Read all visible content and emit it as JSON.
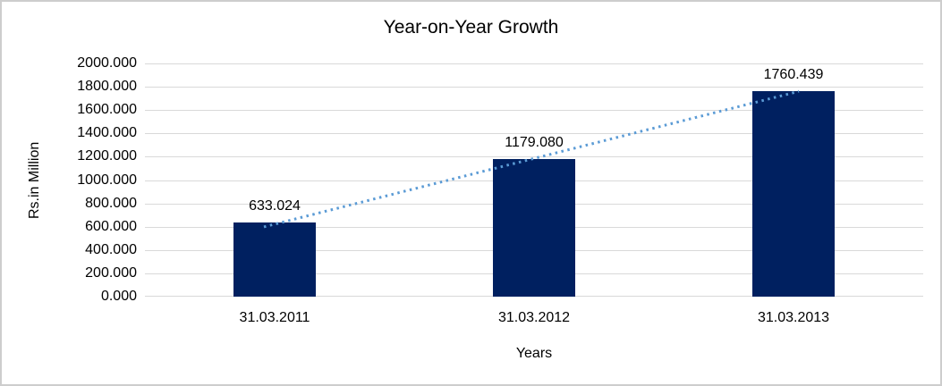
{
  "chart_data": {
    "type": "bar",
    "title": "Year-on-Year Growth",
    "categories": [
      "31.03.2011",
      "31.03.2012",
      "31.03.2013"
    ],
    "values": [
      633.024,
      1179.08,
      1760.439
    ],
    "value_labels": [
      "633.024",
      "1179.080",
      "1760.439"
    ],
    "xlabel": "Years",
    "ylabel": "Rs.in Million",
    "ylim": [
      0,
      2000
    ],
    "ytick_step": 200,
    "ytick_labels": [
      "2000.000",
      "1800.000",
      "1600.000",
      "1400.000",
      "1200.000",
      "1000.000",
      "800.000",
      "600.000",
      "400.000",
      "200.000",
      "0.000"
    ],
    "grid": true,
    "legend": "none",
    "trendline": {
      "style": "dotted",
      "color": "#5B9BD5"
    },
    "colors": {
      "bar": "#002060",
      "gridline": "#D9D9D9",
      "border": "#CDCDCD",
      "text": "#000000",
      "background": "#FFFFFF"
    }
  }
}
